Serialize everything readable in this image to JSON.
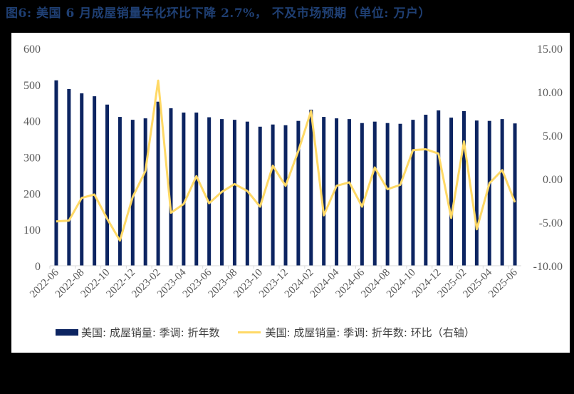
{
  "title": "图6:  美国 6 月成屋销量年化环比下降 2.7%， 不及市场预期（单位:  万户）",
  "colors": {
    "bar": "#0c2461",
    "line": "#ffd966",
    "title": "#1f3f73",
    "axis_text": "#595959",
    "frame": "#000000"
  },
  "legend": {
    "bar_label": "美国: 成屋销量: 季调: 折年数",
    "line_label": "美国: 成屋销量: 季调: 折年数: 环比（右轴）"
  },
  "chart_data": {
    "type": "bar+line",
    "title": "图6: 美国 6 月成屋销量年化环比下降 2.7%，不及市场预期（单位：万户）",
    "xlabel": "",
    "ylabel_left": "",
    "ylabel_right": "",
    "ylim_left": [
      0,
      600
    ],
    "yticks_left": [
      "0",
      "100",
      "200",
      "300",
      "400",
      "500",
      "600"
    ],
    "ylim_right": [
      -10,
      15
    ],
    "yticks_right": [
      "-10.00",
      "-5.00",
      "0.00",
      "5.00",
      "10.00",
      "15.00"
    ],
    "grid": false,
    "legend_position": "bottom",
    "categories": [
      "2022-06",
      "2022-07",
      "2022-08",
      "2022-09",
      "2022-10",
      "2022-11",
      "2022-12",
      "2023-01",
      "2023-02",
      "2023-03",
      "2023-04",
      "2023-05",
      "2023-06",
      "2023-07",
      "2023-08",
      "2023-09",
      "2023-10",
      "2023-11",
      "2023-12",
      "2024-01",
      "2024-02",
      "2024-03",
      "2024-04",
      "2024-05",
      "2024-06",
      "2024-07",
      "2024-08",
      "2024-09",
      "2024-10",
      "2024-11",
      "2024-12",
      "2025-01",
      "2025-02",
      "2025-03",
      "2025-04",
      "2025-05",
      "2025-06"
    ],
    "x_tick_labels": [
      "2022-06",
      "2022-08",
      "2022-10",
      "2022-12",
      "2023-02",
      "2023-04",
      "2023-06",
      "2023-08",
      "2023-10",
      "2023-12",
      "2024-02",
      "2024-04",
      "2024-06",
      "2024-08",
      "2024-10",
      "2024-12",
      "2025-02",
      "2025-04",
      "2025-06"
    ],
    "series": [
      {
        "name": "美国: 成屋销量: 季调: 折年数",
        "type": "bar",
        "axis": "left",
        "values": [
          512,
          488,
          476,
          468,
          445,
          411,
          403,
          407,
          453,
          435,
          423,
          423,
          410,
          405,
          403,
          398,
          384,
          390,
          388,
          400,
          431,
          411,
          407,
          405,
          394,
          398,
          394,
          392,
          403,
          417,
          429,
          409,
          427,
          401,
          400,
          405,
          393
        ]
      },
      {
        "name": "美国: 成屋销量: 季调: 折年数: 环比（右轴）",
        "type": "line",
        "axis": "right",
        "values": [
          -4.9,
          -4.8,
          -2.2,
          -1.8,
          -4.6,
          -7.1,
          -2.1,
          0.9,
          11.3,
          -3.9,
          -2.9,
          0.3,
          -2.8,
          -1.5,
          -0.6,
          -1.4,
          -3.2,
          1.5,
          -0.8,
          3.2,
          7.8,
          -4.2,
          -0.8,
          -0.4,
          -3.2,
          1.3,
          -1.2,
          -0.7,
          3.3,
          3.4,
          2.9,
          -4.5,
          4.3,
          -5.8,
          -0.5,
          1.0,
          -2.7
        ]
      }
    ]
  }
}
